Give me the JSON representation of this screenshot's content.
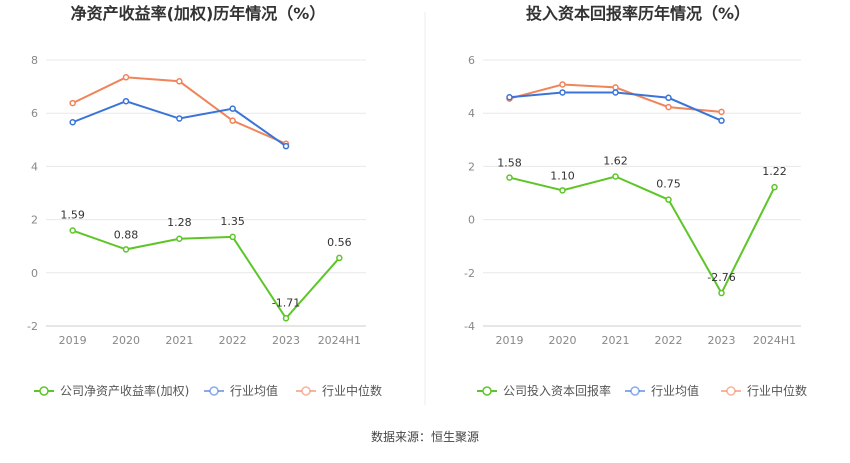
{
  "source_label": "数据来源：恒生聚源",
  "colors": {
    "company": "#5cc628",
    "avg": "#3a74d9",
    "median": "#f0845a",
    "grid": "#e8e8e8",
    "axis": "#cccccc"
  },
  "chart_data": [
    {
      "type": "line",
      "title": "净资产收益率(加权)历年情况（%）",
      "categories": [
        "2019",
        "2020",
        "2021",
        "2022",
        "2023",
        "2024H1"
      ],
      "ylim": [
        -2,
        8
      ],
      "yticks": [
        -2,
        0,
        2,
        4,
        6,
        8
      ],
      "grid": true,
      "legend_position": "bottom",
      "series": [
        {
          "name": "公司净资产收益率(加权)",
          "key": "company",
          "values": [
            1.59,
            0.88,
            1.28,
            1.35,
            -1.71,
            0.56
          ],
          "labels": [
            "1.59",
            "0.88",
            "1.28",
            "1.35",
            "-1.71",
            "0.56"
          ]
        },
        {
          "name": "行业均值",
          "key": "avg",
          "values": [
            5.66,
            6.45,
            5.8,
            6.17,
            4.76,
            null
          ]
        },
        {
          "name": "行业中位数",
          "key": "median",
          "values": [
            6.38,
            7.35,
            7.2,
            5.72,
            4.85,
            null
          ]
        }
      ]
    },
    {
      "type": "line",
      "title": "投入资本回报率历年情况（%）",
      "categories": [
        "2019",
        "2020",
        "2021",
        "2022",
        "2023",
        "2024H1"
      ],
      "ylim": [
        -4,
        6
      ],
      "yticks": [
        -4,
        -2,
        0,
        2,
        4,
        6
      ],
      "grid": true,
      "legend_position": "bottom",
      "series": [
        {
          "name": "公司投入资本回报率",
          "key": "company",
          "values": [
            1.58,
            1.1,
            1.62,
            0.75,
            -2.76,
            1.22
          ],
          "labels": [
            "1.58",
            "1.10",
            "1.62",
            "0.75",
            "-2.76",
            "1.22"
          ]
        },
        {
          "name": "行业均值",
          "key": "avg",
          "values": [
            4.6,
            4.78,
            4.78,
            4.58,
            3.72,
            null
          ]
        },
        {
          "name": "行业中位数",
          "key": "median",
          "values": [
            4.55,
            5.08,
            4.97,
            4.23,
            4.05,
            null
          ]
        }
      ]
    }
  ]
}
